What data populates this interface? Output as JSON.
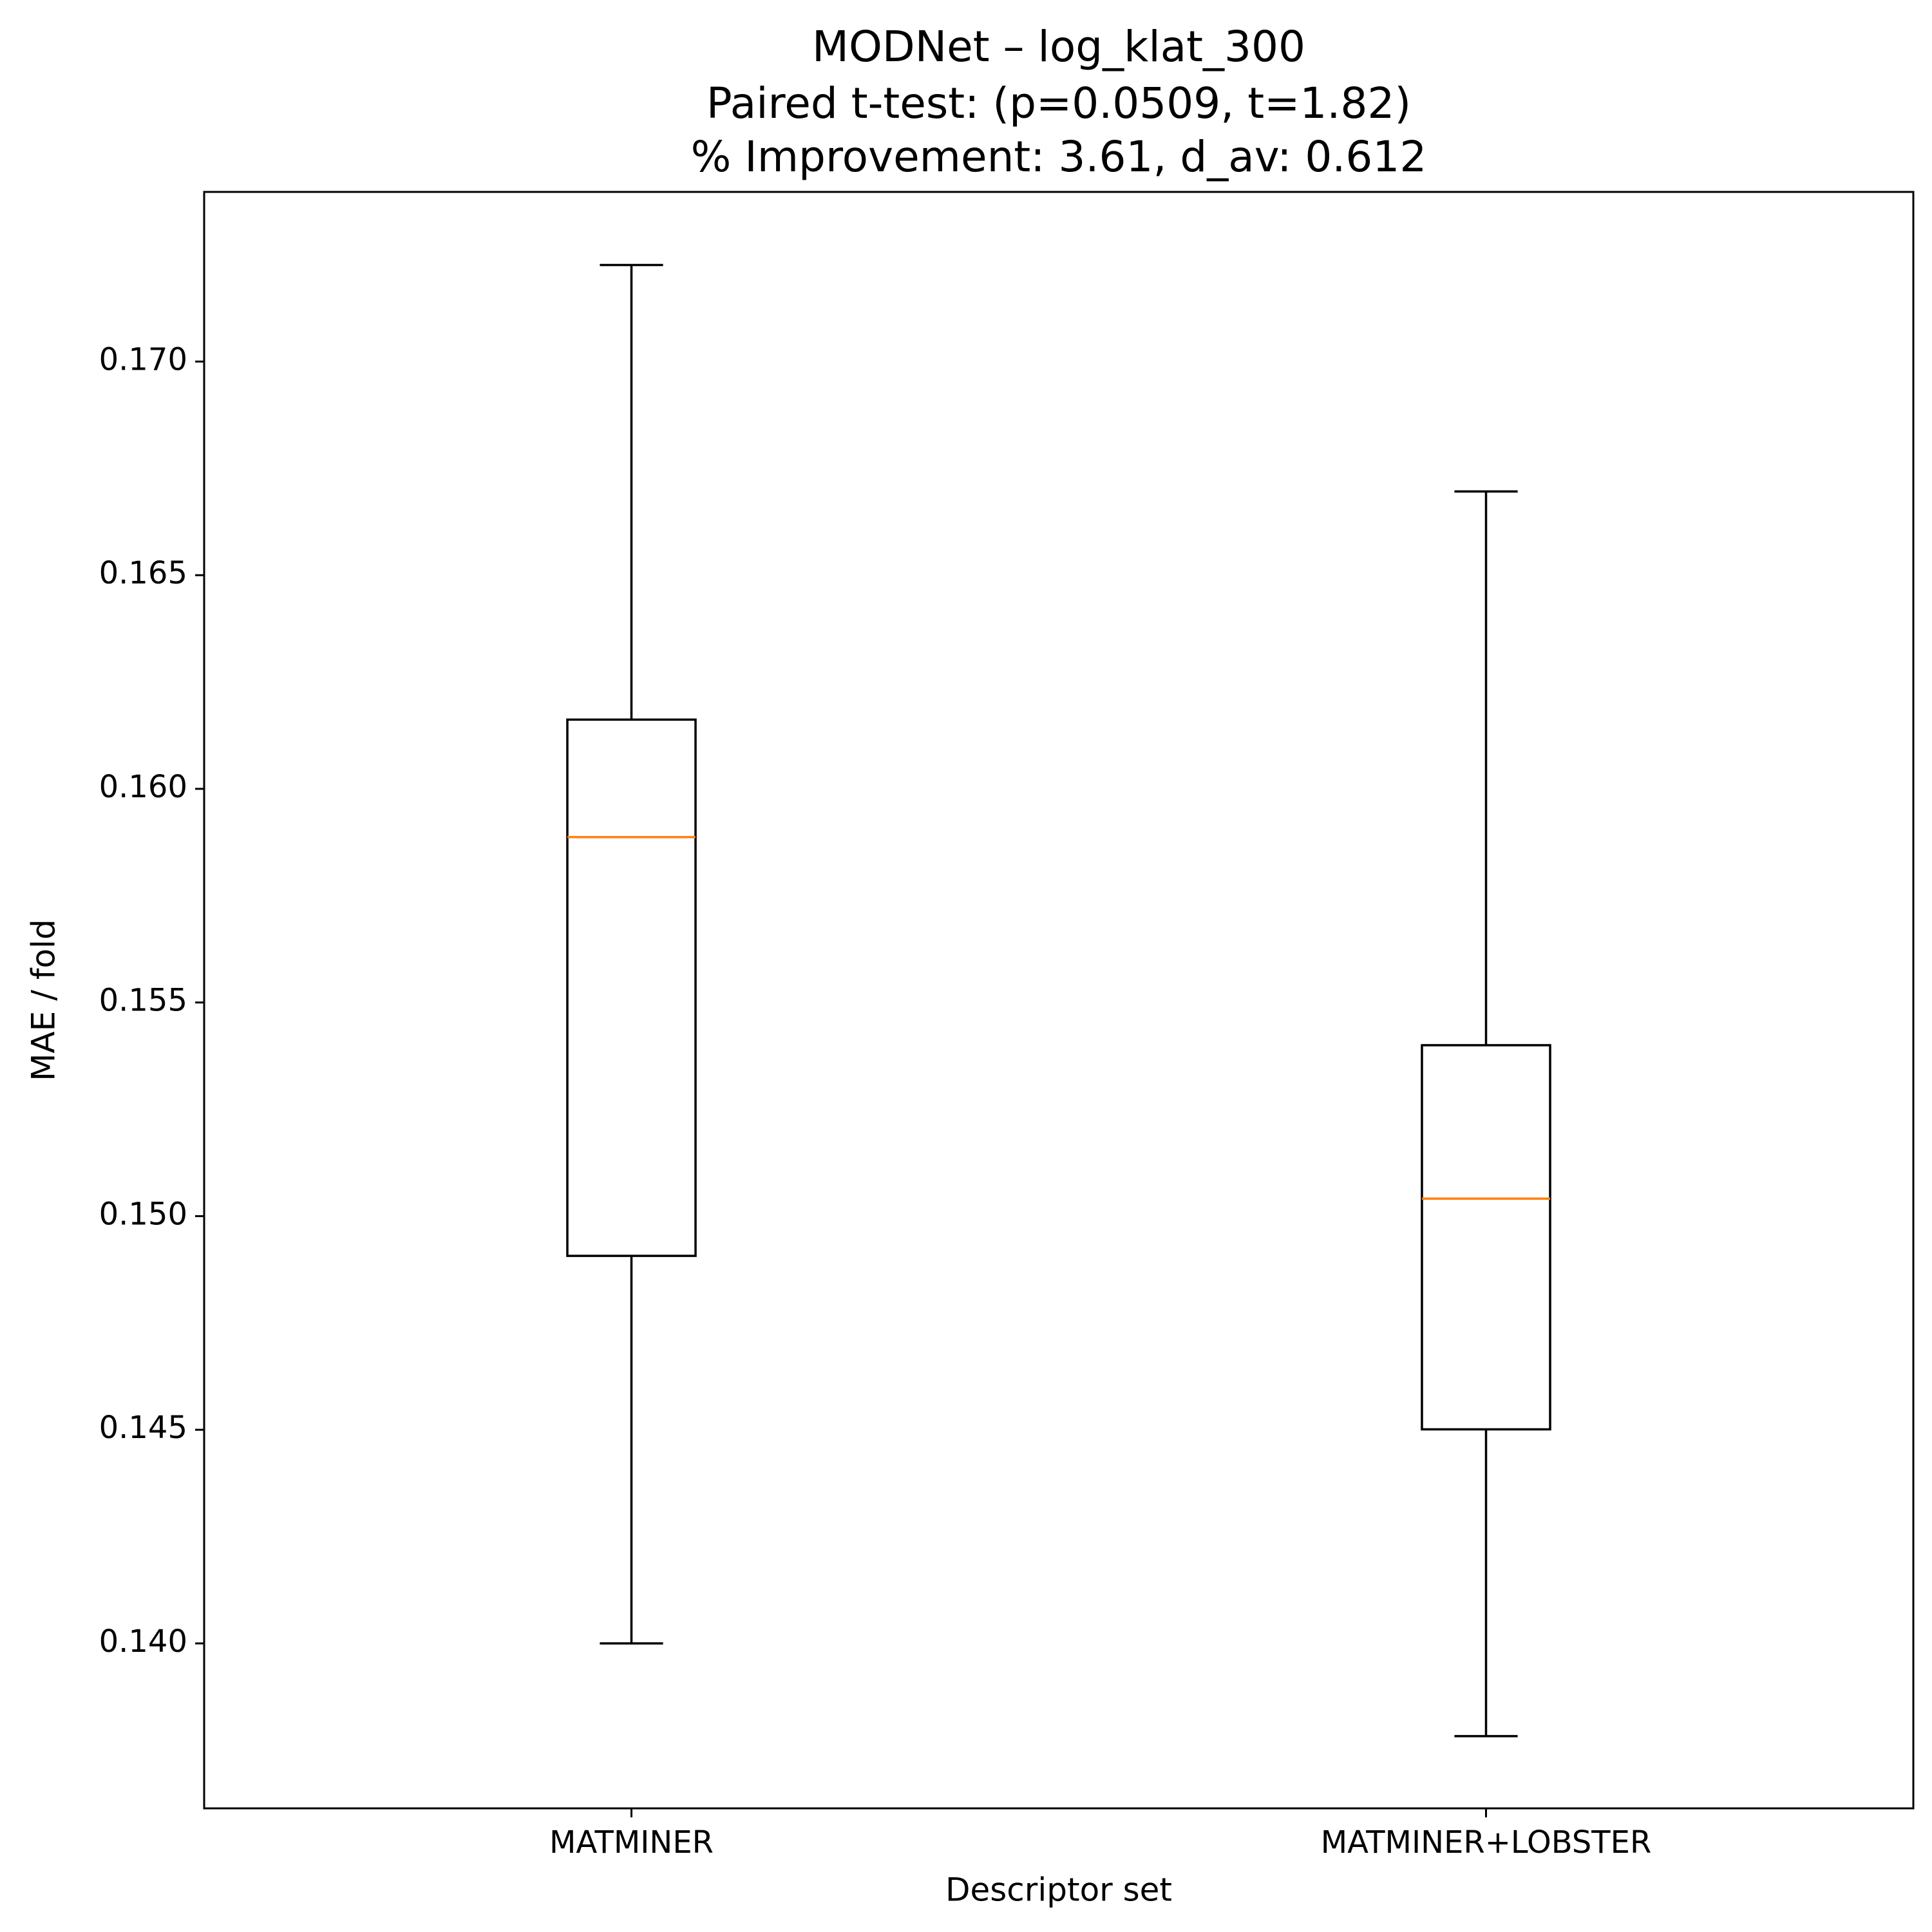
{
  "chart_data": {
    "type": "box",
    "title": [
      "MODNet – log_klat_300",
      "Paired t-test: (p=0.0509, t=1.82)",
      "% Improvement: 3.61, d_av: 0.612"
    ],
    "xlabel": "Descriptor set",
    "ylabel": "MAE / fold",
    "categories": [
      "MATMINER",
      "MATMINER+LOBSTER"
    ],
    "boxes": [
      {
        "low": 0.14,
        "q1": 0.14907,
        "median": 0.15887,
        "q3": 0.16162,
        "high": 0.17226
      },
      {
        "low": 0.13783,
        "q1": 0.14501,
        "median": 0.15041,
        "q3": 0.154,
        "high": 0.16696
      }
    ],
    "color": "#000000",
    "median_color": "#ff7f0e",
    "ylim": [
      0.13614,
      0.17397
    ],
    "yticks": [
      {
        "value": 0.14,
        "label": "0.140"
      },
      {
        "value": 0.145,
        "label": "0.145"
      },
      {
        "value": 0.15,
        "label": "0.150"
      },
      {
        "value": 0.155,
        "label": "0.155"
      },
      {
        "value": 0.16,
        "label": "0.160"
      },
      {
        "value": 0.165,
        "label": "0.165"
      },
      {
        "value": 0.17,
        "label": "0.170"
      }
    ],
    "grid": false
  }
}
